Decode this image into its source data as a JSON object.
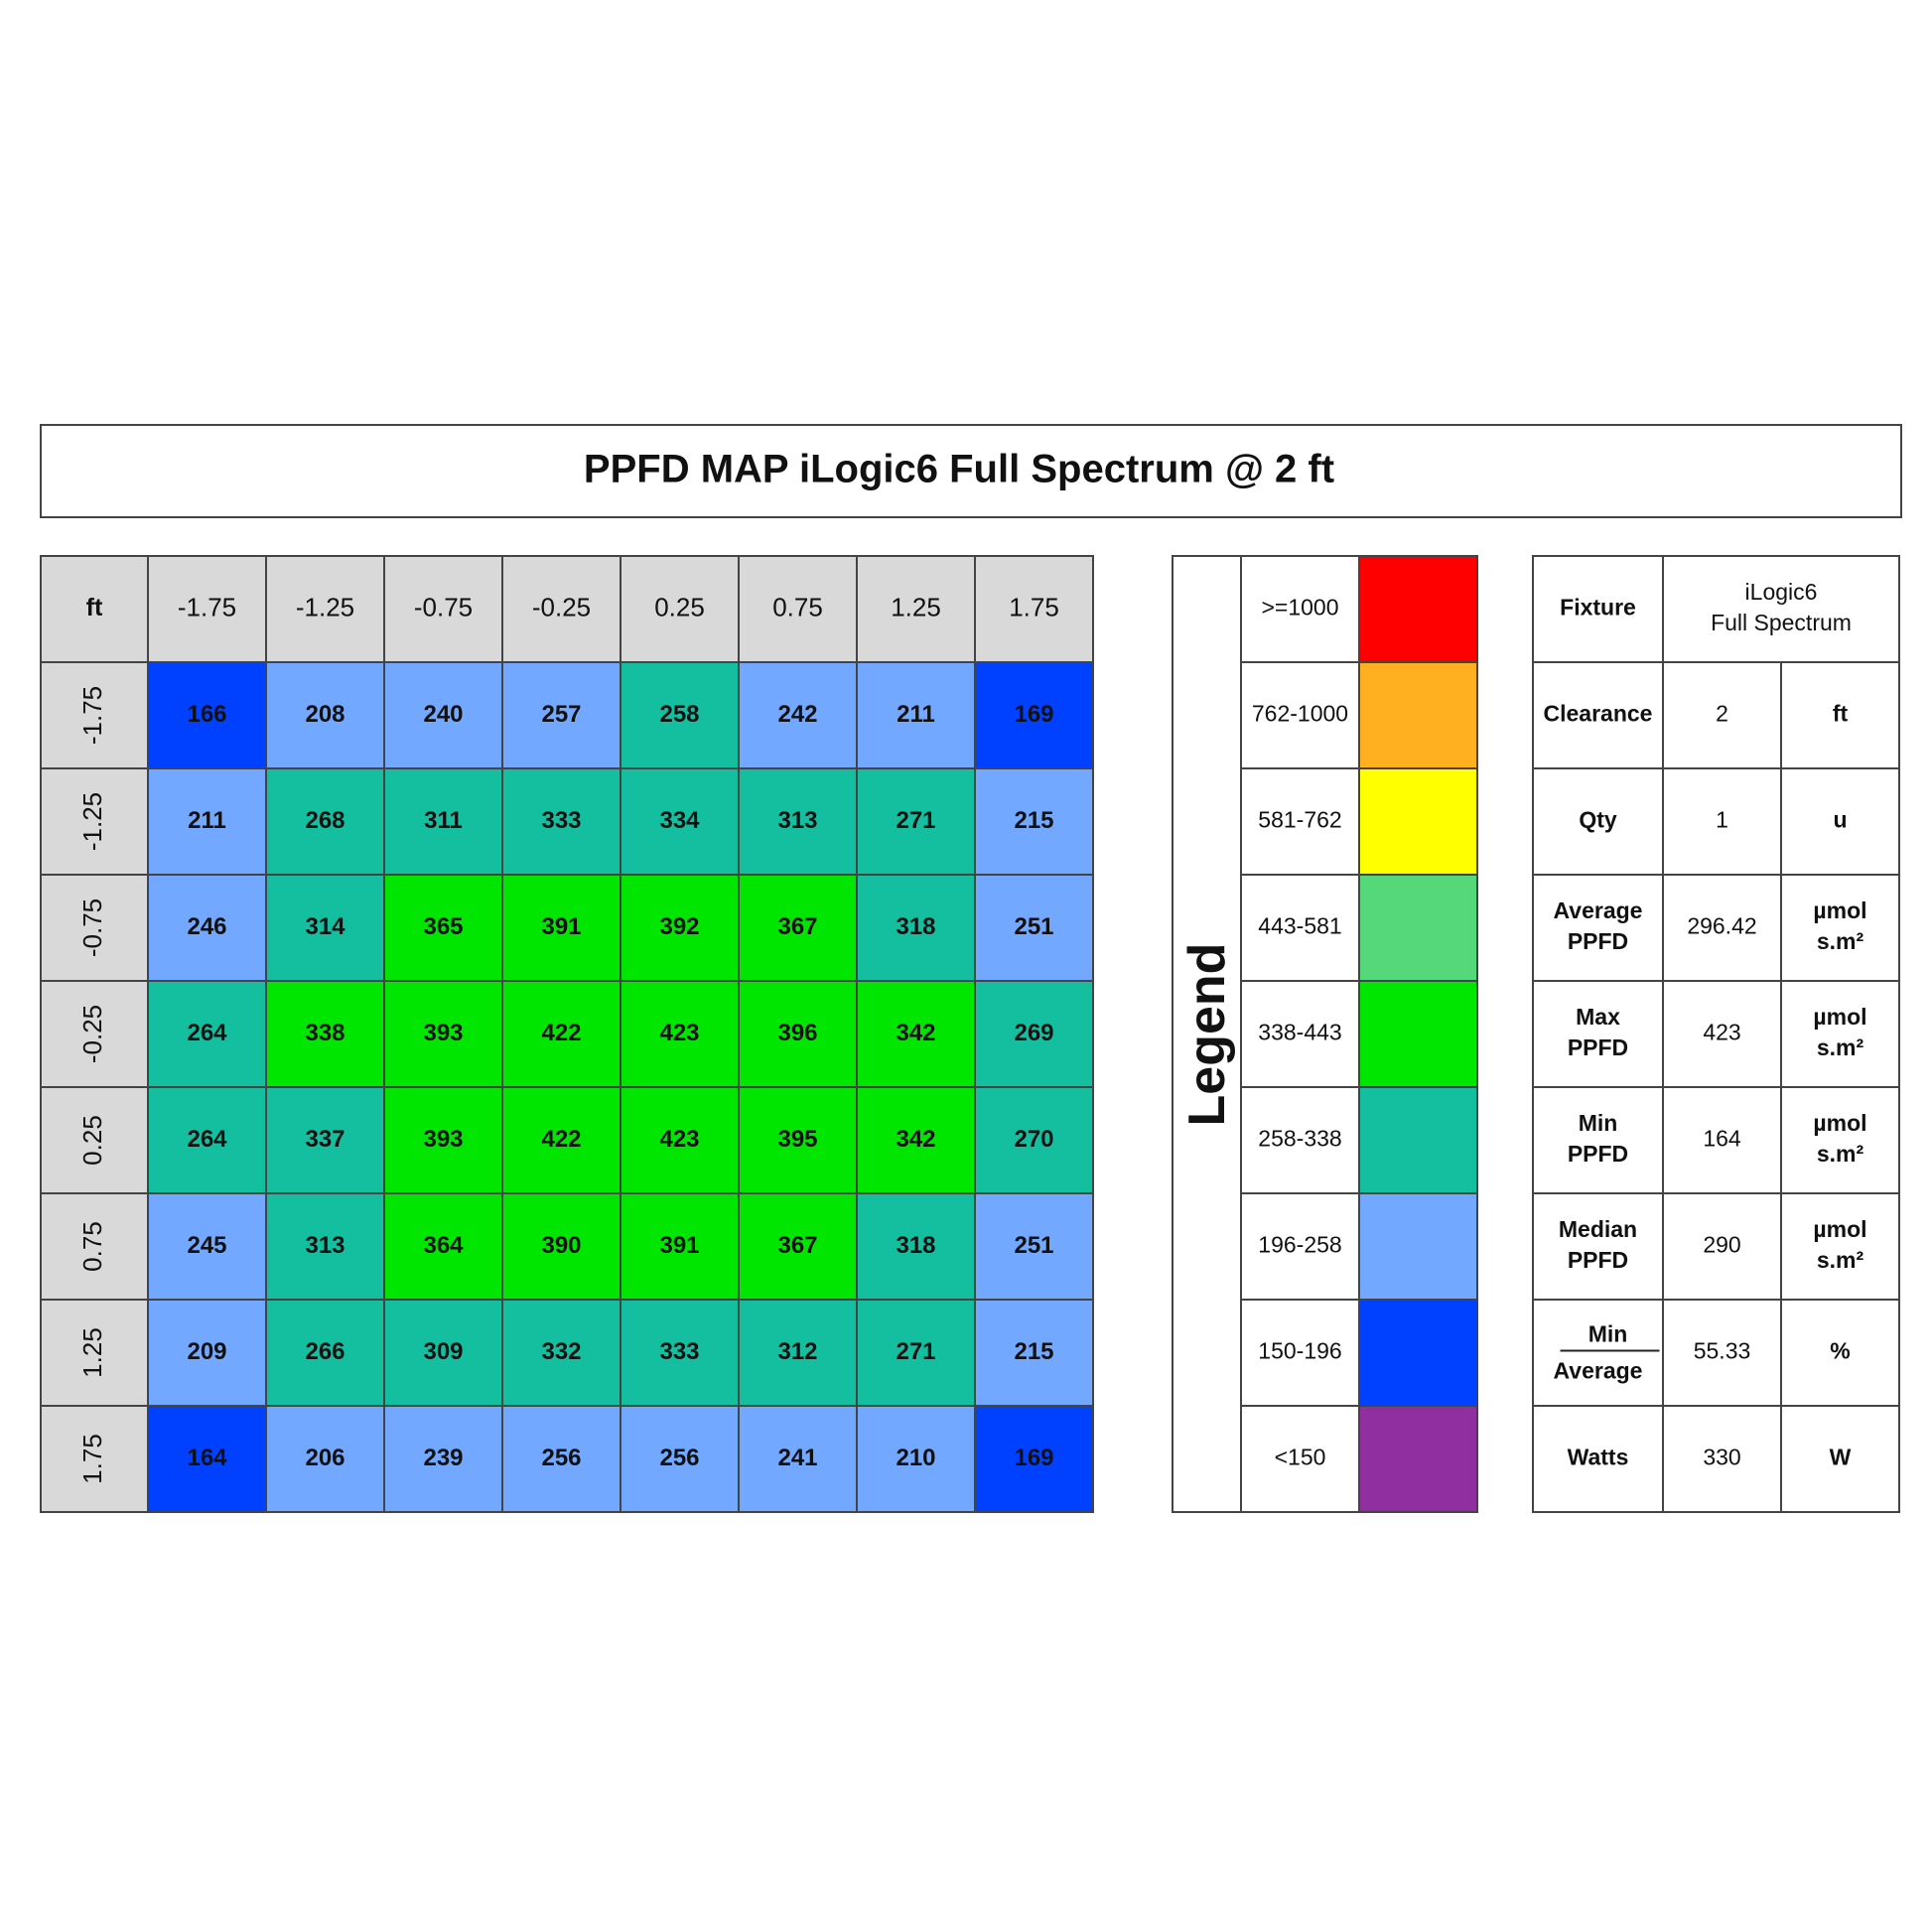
{
  "title": "PPFD MAP iLogic6 Full Spectrum @ 2 ft",
  "map": {
    "corner": "ft",
    "columns": [
      -1.75,
      -1.25,
      -0.75,
      -0.25,
      0.25,
      0.75,
      1.25,
      1.75
    ],
    "rows": [
      {
        "label": -1.75,
        "values": [
          166,
          208,
          240,
          257,
          258,
          242,
          211,
          169
        ]
      },
      {
        "label": -1.25,
        "values": [
          211,
          268,
          311,
          333,
          334,
          313,
          271,
          215
        ]
      },
      {
        "label": -0.75,
        "values": [
          246,
          314,
          365,
          391,
          392,
          367,
          318,
          251
        ]
      },
      {
        "label": -0.25,
        "values": [
          264,
          338,
          393,
          422,
          423,
          396,
          342,
          269
        ]
      },
      {
        "label": 0.25,
        "values": [
          264,
          337,
          393,
          422,
          423,
          395,
          342,
          270
        ]
      },
      {
        "label": 0.75,
        "values": [
          245,
          313,
          364,
          390,
          391,
          367,
          318,
          251
        ]
      },
      {
        "label": 1.25,
        "values": [
          209,
          266,
          309,
          332,
          333,
          312,
          271,
          215
        ]
      },
      {
        "label": 1.75,
        "values": [
          164,
          206,
          239,
          256,
          256,
          241,
          210,
          169
        ]
      }
    ]
  },
  "legend": {
    "title": "Legend",
    "bands": [
      {
        "range": ">=1000",
        "color": "#ff0000"
      },
      {
        "range": "762-1000",
        "color": "#ffb020"
      },
      {
        "range": "581-762",
        "color": "#ffff00"
      },
      {
        "range": "443-581",
        "color": "#55d87a"
      },
      {
        "range": "338-443",
        "color": "#00e600"
      },
      {
        "range": "258-338",
        "color": "#14bfa0"
      },
      {
        "range": "196-258",
        "color": "#72a8ff"
      },
      {
        "range": "150-196",
        "color": "#0040ff"
      },
      {
        "range": "<150",
        "color": "#9030a0"
      }
    ]
  },
  "specs": [
    {
      "label": [
        "Fixture"
      ],
      "value": [
        "iLogic6",
        "Full Spectrum"
      ]
    },
    {
      "label": [
        "Clearance"
      ],
      "value": [
        2
      ],
      "unit": [
        "ft"
      ]
    },
    {
      "label": [
        "Qty"
      ],
      "value": [
        1
      ],
      "unit": [
        "u"
      ]
    },
    {
      "label": [
        "Average",
        "PPFD"
      ],
      "value": [
        296.42
      ],
      "unit": [
        "µmol",
        "s.m²"
      ]
    },
    {
      "label": [
        "Max",
        "PPFD"
      ],
      "value": [
        423
      ],
      "unit": [
        "µmol",
        "s.m²"
      ]
    },
    {
      "label": [
        "Min",
        "PPFD"
      ],
      "value": [
        164
      ],
      "unit": [
        "µmol",
        "s.m²"
      ]
    },
    {
      "label": [
        "Median",
        "PPFD"
      ],
      "value": [
        290
      ],
      "unit": [
        "µmol",
        "s.m²"
      ]
    },
    {
      "label": {
        "numerator": "Min",
        "denominator": "Average"
      },
      "value": [
        55.33
      ],
      "unit": [
        "%"
      ]
    },
    {
      "label": [
        "Watts"
      ],
      "value": [
        330
      ],
      "unit": [
        "W"
      ]
    }
  ]
}
